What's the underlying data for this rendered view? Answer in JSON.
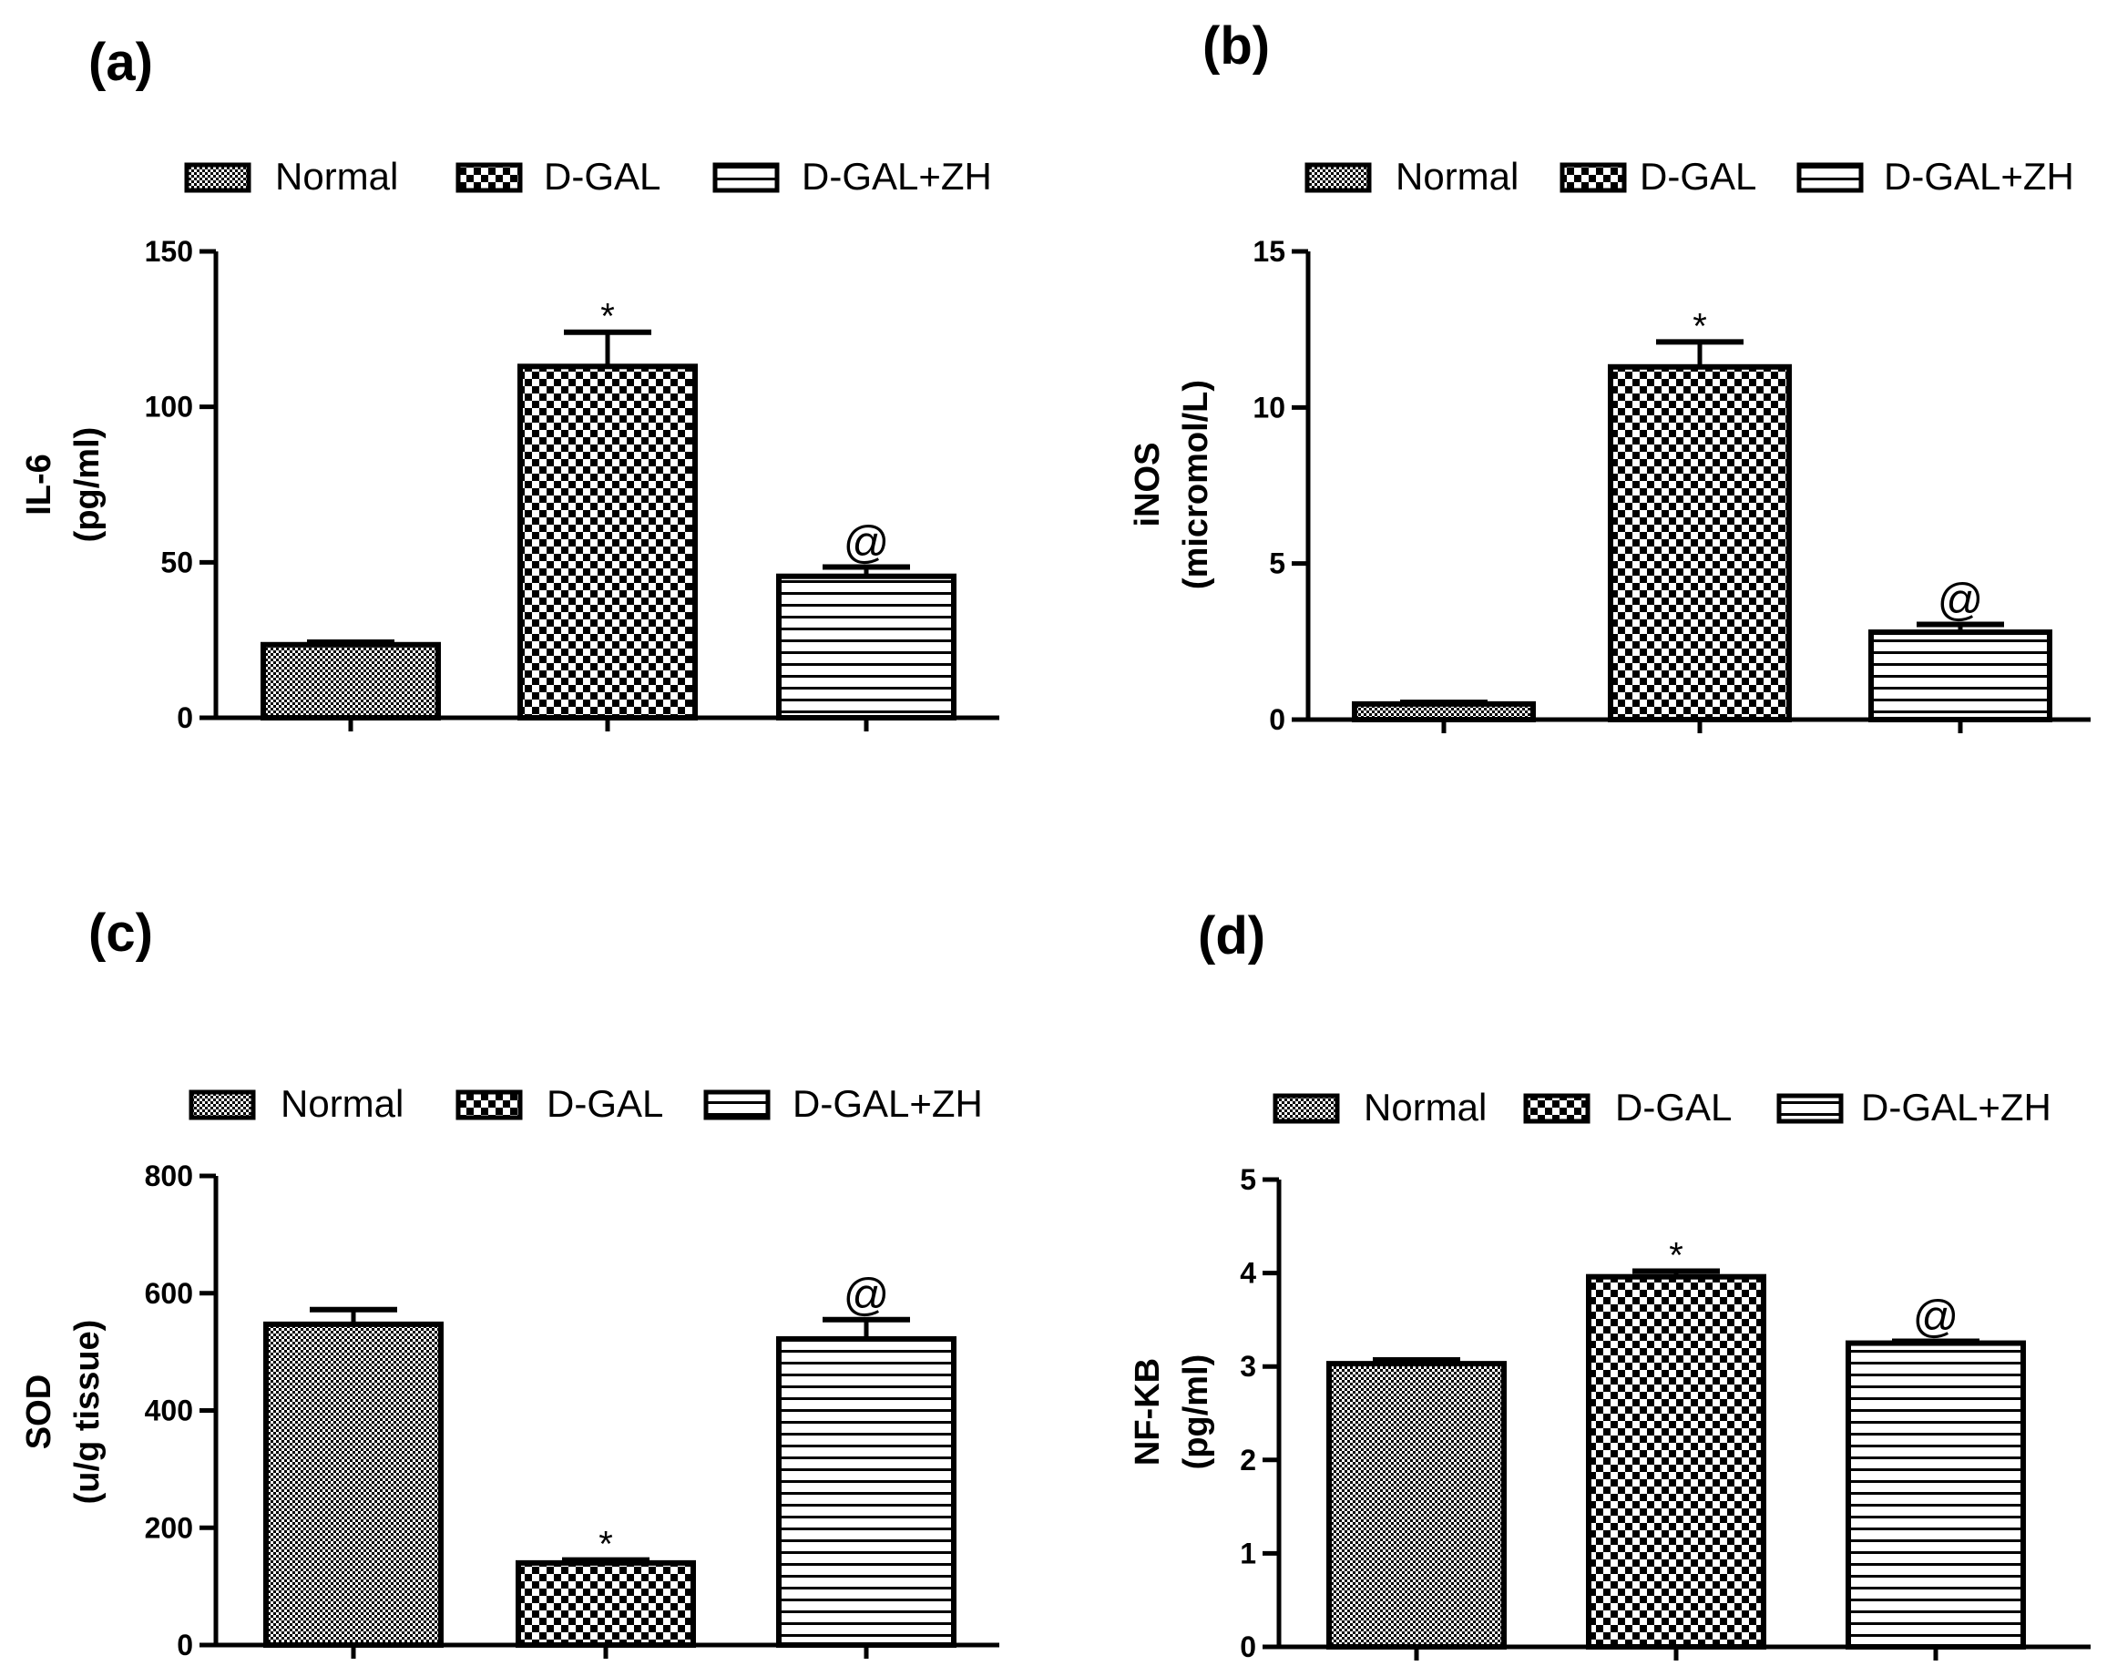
{
  "chart_data": [
    {
      "type": "bar",
      "panel": "(a)",
      "categories": [
        "Normal",
        "D-GAL",
        "D-GAL+ZH"
      ],
      "series": [
        {
          "values": [
            23.5,
            113,
            45.5
          ],
          "errors": [
            0.8,
            11,
            3
          ]
        }
      ],
      "ylabel": [
        "IL-6",
        "(pg/ml)"
      ],
      "ylim": [
        0,
        150
      ],
      "yticks": [
        0,
        50,
        100,
        150
      ],
      "annotations": [
        "",
        "*",
        "@"
      ],
      "legend": [
        "Normal",
        "D-GAL",
        "D-GAL+ZH"
      ],
      "legend_position": "top"
    },
    {
      "type": "bar",
      "panel": "(b)",
      "categories": [
        "Normal",
        "D-GAL",
        "D-GAL+ZH"
      ],
      "series": [
        {
          "values": [
            0.5,
            11.3,
            2.8
          ],
          "errors": [
            0.05,
            0.8,
            0.25
          ]
        }
      ],
      "ylabel": [
        "iNOS",
        "(micromol/L)"
      ],
      "ylim": [
        0,
        15
      ],
      "yticks": [
        0,
        5,
        10,
        15
      ],
      "annotations": [
        "",
        "*",
        "@"
      ],
      "legend": [
        "Normal",
        "D-GAL",
        "D-GAL+ZH"
      ],
      "legend_position": "top"
    },
    {
      "type": "bar",
      "panel": "(c)",
      "categories": [
        "Normal",
        "D-GAL",
        "D-GAL+ZH"
      ],
      "series": [
        {
          "values": [
            547,
            140,
            522
          ],
          "errors": [
            25,
            5,
            33
          ]
        }
      ],
      "ylabel": [
        "SOD",
        "(u/g tissue)"
      ],
      "ylim": [
        0,
        800
      ],
      "yticks": [
        0,
        200,
        400,
        600,
        800
      ],
      "annotations": [
        "",
        "*",
        "@"
      ],
      "legend": [
        "Normal",
        "D-GAL",
        "D-GAL+ZH"
      ],
      "legend_position": "top"
    },
    {
      "type": "bar",
      "panel": "(d)",
      "categories": [
        "Normal",
        "D-GAL",
        "D-GAL+ZH"
      ],
      "series": [
        {
          "values": [
            3.03,
            3.96,
            3.25
          ],
          "errors": [
            0.04,
            0.06,
            0.02
          ]
        }
      ],
      "ylabel": [
        "NF-KB",
        "(pg/ml)"
      ],
      "ylim": [
        0,
        5
      ],
      "yticks": [
        0,
        1,
        2,
        3,
        4,
        5
      ],
      "annotations": [
        "",
        "*",
        "@"
      ],
      "legend": [
        "Normal",
        "D-GAL",
        "D-GAL+ZH"
      ],
      "legend_position": "top"
    }
  ]
}
